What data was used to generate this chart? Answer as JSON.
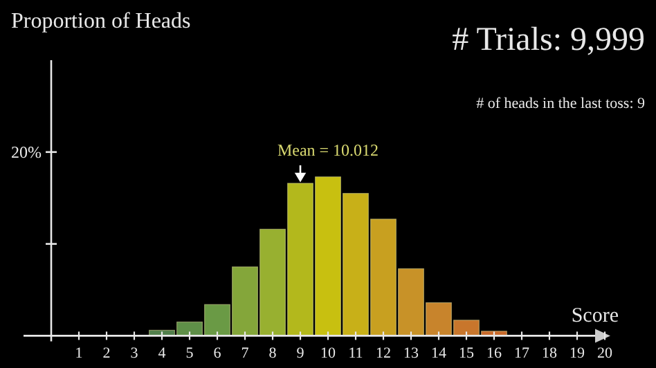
{
  "chart_data": {
    "type": "bar",
    "ylabel": "Proportion of Heads",
    "xlabel": "Score",
    "x": [
      0,
      1,
      2,
      3,
      4,
      5,
      6,
      7,
      8,
      9,
      10,
      11,
      12,
      13,
      14,
      15,
      16,
      17,
      18,
      19,
      20
    ],
    "values": [
      0,
      0,
      0,
      null,
      0.6,
      1.5,
      3.4,
      7.5,
      11.6,
      16.6,
      17.3,
      15.5,
      12.7,
      7.3,
      3.6,
      1.7,
      0.5,
      null,
      0,
      0,
      0
    ],
    "colors": [
      "#3f6f52",
      "#436f50",
      "#47734f",
      null,
      "#52804c",
      "#5f8f48",
      "#6a9a45",
      "#84a63a",
      "#98b030",
      "#b3b81c",
      "#c8c010",
      "#c8b018",
      "#c8a020",
      "#c89228",
      "#c8842c",
      "#c8762c",
      "#c86a2c",
      null,
      "#c8582c",
      "#c8502c",
      "#c8482c"
    ],
    "xlim": [
      -1,
      20
    ],
    "xticks": [
      1,
      2,
      3,
      4,
      5,
      6,
      7,
      8,
      9,
      10,
      11,
      12,
      13,
      14,
      15,
      16,
      17,
      18,
      19,
      20
    ],
    "ylim": [
      0,
      30
    ],
    "yticks": [
      {
        "value": 10,
        "label": null
      },
      {
        "value": 20,
        "label": "20%"
      }
    ],
    "grid": false,
    "annotations": [
      {
        "text": "Mean = 10.012",
        "x": 9,
        "y": 16.6
      },
      "# Trials: 9,999",
      "# of heads in the last toss: 9"
    ]
  }
}
